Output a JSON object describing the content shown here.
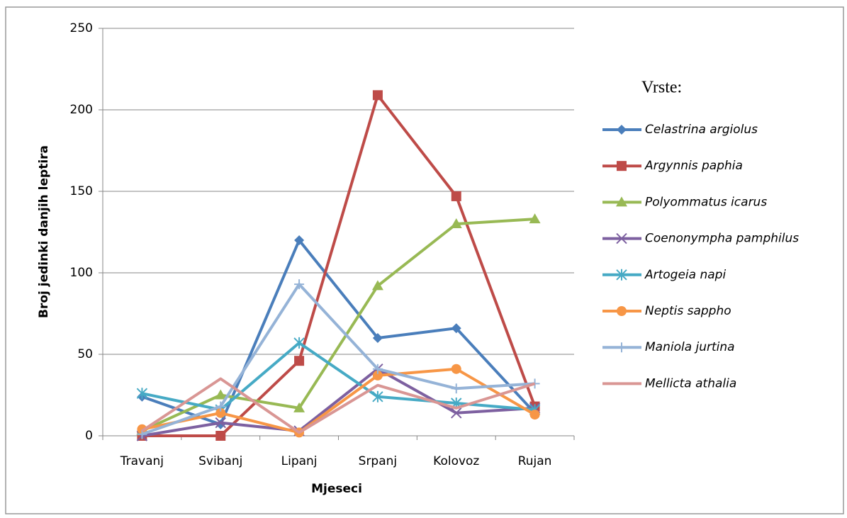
{
  "chart_data": {
    "type": "line",
    "xlabel": "Mjeseci",
    "ylabel": "Broj jedinki danjih leptira",
    "legend_title": "Vrste:",
    "legend": "right",
    "grid": true,
    "categories": [
      "Travanj",
      "Svibanj",
      "Lipanj",
      "Srpanj",
      "Kolovoz",
      "Rujan"
    ],
    "ylim": [
      0,
      250
    ],
    "yticks": [
      0,
      50,
      100,
      150,
      200,
      250
    ],
    "series": [
      {
        "name": "Celastrina argiolus",
        "color": "#4a7ebb",
        "marker": "diamond",
        "values": [
          24,
          7,
          120,
          60,
          66,
          14
        ]
      },
      {
        "name": "Argynnis paphia",
        "color": "#be4b48",
        "marker": "square",
        "values": [
          0,
          0,
          46,
          209,
          147,
          18
        ]
      },
      {
        "name": "Polyommatus icarus",
        "color": "#98b954",
        "marker": "triangle",
        "values": [
          3,
          25,
          17,
          92,
          130,
          133
        ]
      },
      {
        "name": "Coenonympha pamphilus",
        "color": "#7d60a0",
        "marker": "x",
        "values": [
          0,
          8,
          3,
          41,
          14,
          17
        ]
      },
      {
        "name": "Artogeia napi",
        "color": "#46aac5",
        "marker": "star",
        "values": [
          26,
          16,
          57,
          24,
          20,
          16
        ]
      },
      {
        "name": "Neptis sappho",
        "color": "#f79646",
        "marker": "circle",
        "values": [
          4,
          14,
          2,
          37,
          41,
          13
        ]
      },
      {
        "name": "Maniola jurtina",
        "color": "#95b3d7",
        "marker": "plus",
        "values": [
          1,
          18,
          93,
          41,
          29,
          32
        ]
      },
      {
        "name": "Mellicta athalia",
        "color": "#d99694",
        "marker": "none",
        "values": [
          3,
          35,
          2,
          31,
          17,
          32
        ]
      }
    ]
  }
}
